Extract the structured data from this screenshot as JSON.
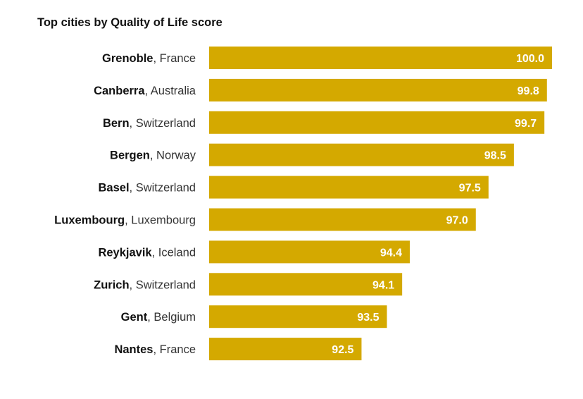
{
  "chart_data": {
    "type": "bar",
    "orientation": "horizontal",
    "title": "Top cities by Quality of Life score",
    "xlabel": "",
    "ylabel": "",
    "xlim": [
      86.5,
      100.0
    ],
    "grid": false,
    "legend": "none",
    "bar_color": "#d4a900",
    "value_label_color": "#ffffff",
    "categories": [
      {
        "city": "Grenoble",
        "country": "France"
      },
      {
        "city": "Canberra",
        "country": "Australia"
      },
      {
        "city": "Bern",
        "country": "Switzerland"
      },
      {
        "city": "Bergen",
        "country": "Norway"
      },
      {
        "city": "Basel",
        "country": "Switzerland"
      },
      {
        "city": "Luxembourg",
        "country": "Luxembourg"
      },
      {
        "city": "Reykjavik",
        "country": "Iceland"
      },
      {
        "city": "Zurich",
        "country": "Switzerland"
      },
      {
        "city": "Gent",
        "country": "Belgium"
      },
      {
        "city": "Nantes",
        "country": "France"
      }
    ],
    "values": [
      100.0,
      99.8,
      99.7,
      98.5,
      97.5,
      97.0,
      94.4,
      94.1,
      93.5,
      92.5
    ],
    "value_labels": [
      "100.0",
      "99.8",
      "99.7",
      "98.5",
      "97.5",
      "97.0",
      "94.4",
      "94.1",
      "93.5",
      "92.5"
    ]
  }
}
